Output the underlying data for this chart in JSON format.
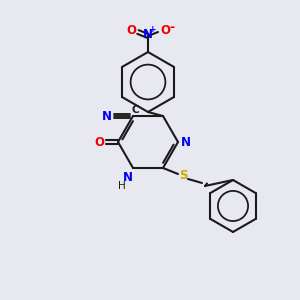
{
  "background_color": "#e8e8f0",
  "bond_color": "#1a1a1a",
  "atom_colors": {
    "N": "#0000ee",
    "O": "#ee0000",
    "S": "#ccaa00",
    "C": "#1a1a1a",
    "H": "#1a1a1a"
  },
  "figsize": [
    3.0,
    3.0
  ],
  "dpi": 100,
  "lw": 1.5
}
